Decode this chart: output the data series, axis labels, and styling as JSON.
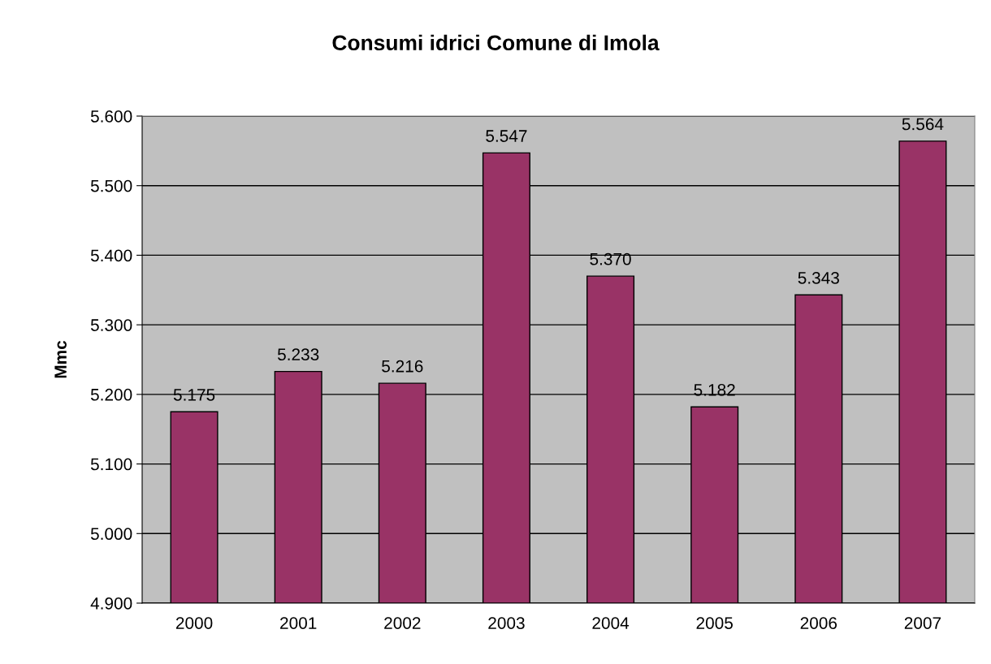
{
  "chart_data": {
    "type": "bar",
    "title": "Consumi idrici Comune di Imola",
    "ylabel": "Mmc",
    "categories": [
      "2000",
      "2001",
      "2002",
      "2003",
      "2004",
      "2005",
      "2006",
      "2007"
    ],
    "series": [
      {
        "color": "#993366",
        "values": [
          5175,
          5233,
          5216,
          5547,
          5370,
          5182,
          5343,
          5564
        ],
        "value_labels": [
          "5.175",
          "5.233",
          "5.216",
          "5.547",
          "5.370",
          "5.182",
          "5.343",
          "5.564"
        ]
      }
    ],
    "ylim": [
      4900,
      5600
    ],
    "yticks": [
      {
        "value": 4900,
        "label": "4.900"
      },
      {
        "value": 5000,
        "label": "5.000"
      },
      {
        "value": 5100,
        "label": "5.100"
      },
      {
        "value": 5200,
        "label": "5.200"
      },
      {
        "value": 5300,
        "label": "5.300"
      },
      {
        "value": 5400,
        "label": "5.400"
      },
      {
        "value": 5500,
        "label": "5.500"
      },
      {
        "value": 5600,
        "label": "5.600"
      }
    ],
    "grid": "y"
  }
}
